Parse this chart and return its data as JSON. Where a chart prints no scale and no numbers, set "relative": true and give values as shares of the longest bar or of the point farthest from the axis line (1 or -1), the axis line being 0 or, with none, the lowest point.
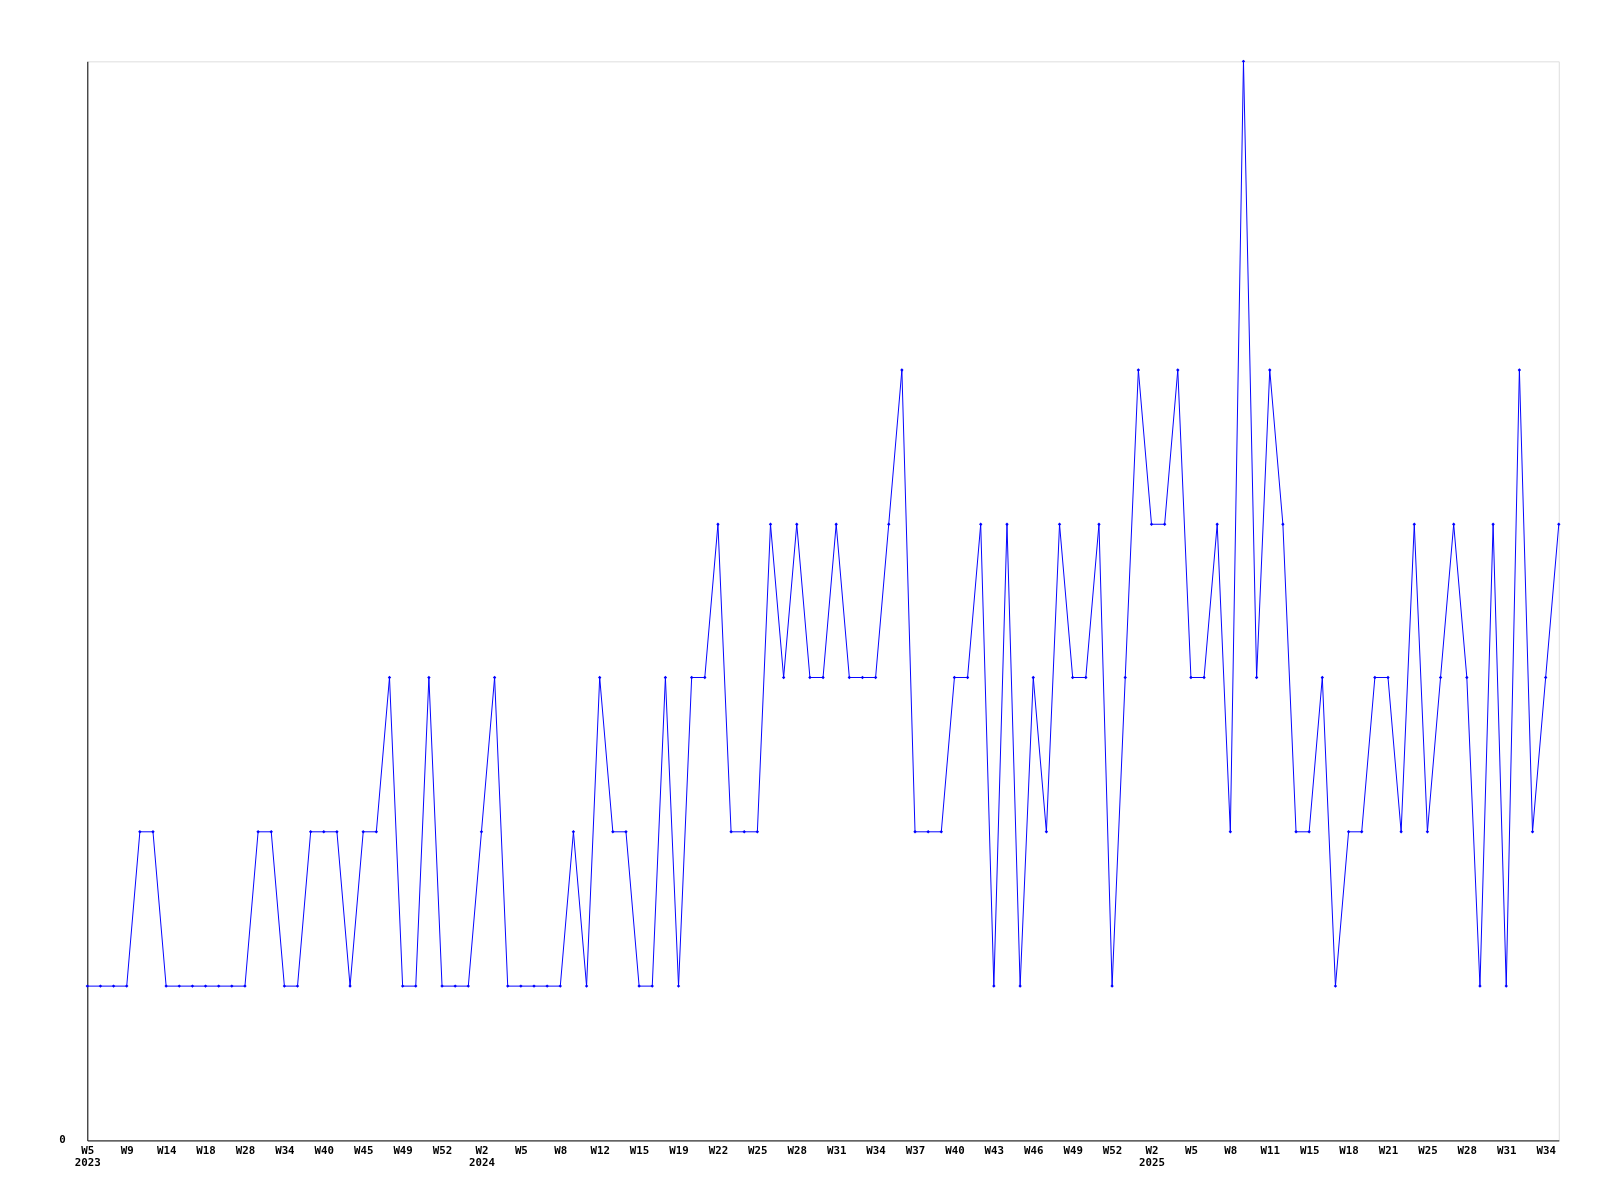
{
  "chart_data": {
    "type": "line",
    "relative": true,
    "marker": "diamond",
    "line_style": "solid",
    "grid": false,
    "legend": false,
    "annotations": [
      "0"
    ],
    "categories": [
      "W5\n2023",
      null,
      null,
      "W9",
      null,
      null,
      "W14",
      null,
      null,
      "W18",
      null,
      null,
      "W28",
      null,
      null,
      "W34",
      null,
      null,
      "W40",
      null,
      null,
      "W45",
      null,
      null,
      "W49",
      null,
      null,
      "W52",
      null,
      null,
      "W2\n2024",
      null,
      null,
      "W5",
      null,
      null,
      "W8",
      null,
      null,
      "W12",
      null,
      null,
      "W15",
      null,
      null,
      "W19",
      null,
      null,
      "W22",
      null,
      null,
      "W25",
      null,
      null,
      "W28",
      null,
      null,
      "W31",
      null,
      null,
      "W34",
      null,
      null,
      "W37",
      null,
      null,
      "W40",
      null,
      null,
      "W43",
      null,
      null,
      "W46",
      null,
      null,
      "W49",
      null,
      null,
      "W52",
      null,
      null,
      "W2\n2025",
      null,
      null,
      "W5",
      null,
      null,
      "W8",
      null,
      null,
      "W11",
      null,
      null,
      "W15",
      null,
      null,
      "W18",
      null,
      null,
      "W21",
      null,
      null,
      "W25",
      null,
      null,
      "W28",
      null,
      null,
      "W31",
      null,
      null,
      "W34",
      null
    ],
    "series": [
      {
        "color": "#0000ff",
        "values": [
          0.143,
          0.143,
          0.143,
          0.143,
          0.286,
          0.286,
          0.143,
          0.143,
          0.143,
          0.143,
          0.143,
          0.143,
          0.143,
          0.286,
          0.286,
          0.143,
          0.143,
          0.286,
          0.286,
          0.286,
          0.143,
          0.286,
          0.286,
          0.429,
          0.143,
          0.143,
          0.429,
          0.143,
          0.143,
          0.143,
          0.286,
          0.429,
          0.143,
          0.143,
          0.143,
          0.143,
          0.143,
          0.286,
          0.143,
          0.429,
          0.286,
          0.286,
          0.143,
          0.143,
          0.429,
          0.143,
          0.429,
          0.429,
          0.571,
          0.286,
          0.286,
          0.286,
          0.571,
          0.429,
          0.571,
          0.429,
          0.429,
          0.571,
          0.429,
          0.429,
          0.429,
          0.571,
          0.714,
          0.286,
          0.286,
          0.286,
          0.429,
          0.429,
          0.571,
          0.143,
          0.571,
          0.143,
          0.429,
          0.286,
          0.571,
          0.429,
          0.429,
          0.571,
          0.143,
          0.429,
          0.714,
          0.571,
          0.571,
          0.714,
          0.429,
          0.429,
          0.571,
          0.286,
          1.0,
          0.429,
          0.714,
          0.571,
          0.286,
          0.286,
          0.429,
          0.143,
          0.286,
          0.286,
          0.429,
          0.429,
          0.286,
          0.571,
          0.286,
          0.429,
          0.571,
          0.429,
          0.143,
          0.571,
          0.143,
          0.714,
          0.286,
          0.429,
          0.571
        ]
      }
    ]
  }
}
